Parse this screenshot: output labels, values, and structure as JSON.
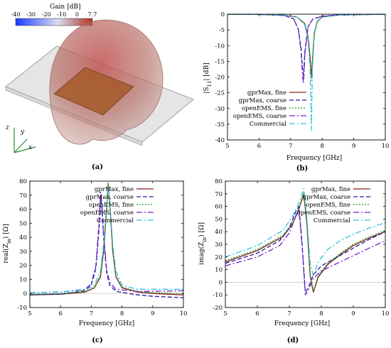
{
  "colors": {
    "gprmax_fine": "#8b1a1a",
    "gprmax_coarse": "#1c1c9c",
    "openems_fine": "#22a022",
    "openems_coarse": "#7a1fcc",
    "commercial": "#33c3e0"
  },
  "panel_labels": [
    "(a)",
    "(b)",
    "(c)",
    "(d)"
  ],
  "render3d": {
    "colorbar_title": "Gain [dB]",
    "colorbar_ticks": [
      "-40",
      "-30",
      "-20",
      "-10",
      "0",
      "7.7"
    ],
    "colorbar_colors": [
      "#1a3cff",
      "#d8dcf0",
      "#b03020"
    ],
    "axes": [
      "z",
      "y",
      "x"
    ]
  },
  "chart_data": [
    {
      "id": "b",
      "type": "line",
      "xlabel": "Frequency [GHz]",
      "ylabel": "|S",
      "ylabel_sub": "11",
      "ylabel_tail": "| [dB]",
      "xlim": [
        5,
        10
      ],
      "ylim": [
        -40,
        0
      ],
      "xticks": [
        5,
        6,
        7,
        8,
        9,
        10
      ],
      "yticks": [
        0,
        -5,
        -10,
        -15,
        -20,
        -25,
        -30,
        -35,
        -40
      ],
      "legend_position": "center-left",
      "series": [
        {
          "name": "gprMax, fine",
          "key": "gprmax_fine",
          "dash": "",
          "x": [
            5.0,
            6.0,
            6.8,
            7.2,
            7.45,
            7.55,
            7.62,
            7.66,
            7.69,
            7.75,
            7.85,
            8.0,
            8.5,
            9.0,
            10.0
          ],
          "y": [
            -0.05,
            -0.1,
            -0.3,
            -0.9,
            -3.0,
            -7.0,
            -14.0,
            -20.0,
            -15.0,
            -6.0,
            -2.2,
            -0.9,
            -0.3,
            -0.15,
            -0.05
          ]
        },
        {
          "name": "gprMax, coarse",
          "key": "gprmax_coarse",
          "dash": "6,3",
          "x": [
            5.0,
            6.0,
            6.8,
            7.1,
            7.25,
            7.33,
            7.38,
            7.41,
            7.45,
            7.55,
            7.7,
            8.0,
            8.5,
            9.0,
            10.0
          ],
          "y": [
            -0.05,
            -0.1,
            -0.4,
            -1.5,
            -5.0,
            -11.0,
            -18.0,
            -19.5,
            -12.0,
            -4.0,
            -1.6,
            -0.6,
            -0.25,
            -0.12,
            -0.05
          ]
        },
        {
          "name": "openEMS, fine",
          "key": "openems_fine",
          "dash": "2,2",
          "x": [
            5.0,
            6.0,
            6.8,
            7.2,
            7.45,
            7.55,
            7.62,
            7.66,
            7.69,
            7.75,
            7.85,
            8.0,
            8.5,
            9.0,
            10.0
          ],
          "y": [
            -0.05,
            -0.1,
            -0.3,
            -0.9,
            -3.0,
            -7.5,
            -15.0,
            -21.0,
            -15.5,
            -6.0,
            -2.2,
            -0.9,
            -0.3,
            -0.15,
            -0.05
          ]
        },
        {
          "name": "openEMS, coarse",
          "key": "openems_coarse",
          "dash": "8,3,2,3",
          "x": [
            5.0,
            6.0,
            6.8,
            7.1,
            7.25,
            7.33,
            7.38,
            7.41,
            7.45,
            7.55,
            7.7,
            8.0,
            8.5,
            9.0,
            10.0
          ],
          "y": [
            -0.05,
            -0.1,
            -0.4,
            -1.5,
            -5.0,
            -12.0,
            -20.0,
            -22.0,
            -13.0,
            -4.0,
            -1.6,
            -0.6,
            -0.25,
            -0.12,
            -0.05
          ]
        },
        {
          "name": "Commercial",
          "key": "commercial",
          "dash": "8,3,2,3",
          "x": [
            5.0,
            6.0,
            6.8,
            7.2,
            7.45,
            7.55,
            7.62,
            7.66,
            7.69,
            7.75,
            7.85,
            8.0,
            8.5,
            9.0,
            10.0
          ],
          "y": [
            -0.05,
            -0.1,
            -0.3,
            -0.9,
            -3.5,
            -8.0,
            -18.0,
            -37.0,
            -18.0,
            -6.5,
            -2.4,
            -0.9,
            -0.3,
            -0.15,
            -0.05
          ]
        }
      ]
    },
    {
      "id": "c",
      "type": "line",
      "xlabel": "Frequency [GHz]",
      "ylabel": "real(Z",
      "ylabel_sub": "in",
      "ylabel_tail": ") [Ω]",
      "xlim": [
        5,
        10
      ],
      "ylim": [
        -10,
        80
      ],
      "xticks": [
        5,
        6,
        7,
        8,
        9,
        10
      ],
      "yticks": [
        -10,
        0,
        10,
        20,
        30,
        40,
        50,
        60,
        70,
        80
      ],
      "legend_position": "top-right",
      "series": [
        {
          "name": "gprMax, fine",
          "key": "gprmax_fine",
          "dash": "",
          "x": [
            5.0,
            6.0,
            6.8,
            7.1,
            7.3,
            7.4,
            7.5,
            7.55,
            7.6,
            7.7,
            7.8,
            8.0,
            8.5,
            9.0,
            10.0
          ],
          "y": [
            -1.0,
            -0.5,
            1.0,
            4.0,
            12.0,
            30.0,
            60.0,
            78.0,
            65.0,
            30.0,
            12.0,
            4.0,
            1.0,
            0.0,
            -1.0
          ]
        },
        {
          "name": "gprMax, coarse",
          "key": "gprmax_coarse",
          "dash": "6,3",
          "x": [
            5.0,
            6.0,
            6.8,
            7.0,
            7.15,
            7.25,
            7.3,
            7.35,
            7.4,
            7.5,
            7.6,
            7.8,
            8.5,
            9.0,
            10.0
          ],
          "y": [
            -1.0,
            -0.5,
            2.0,
            6.0,
            18.0,
            45.0,
            68.0,
            60.0,
            40.0,
            15.0,
            6.0,
            1.5,
            -1.0,
            -2.0,
            -3.0
          ]
        },
        {
          "name": "openEMS, fine",
          "key": "openems_fine",
          "dash": "2,2",
          "x": [
            5.0,
            6.0,
            6.8,
            7.1,
            7.3,
            7.4,
            7.5,
            7.55,
            7.6,
            7.7,
            7.8,
            8.0,
            8.5,
            9.0,
            10.0
          ],
          "y": [
            -0.5,
            0.0,
            1.5,
            4.5,
            13.0,
            32.0,
            62.0,
            79.0,
            66.0,
            31.0,
            13.0,
            4.5,
            1.5,
            0.5,
            0.0
          ]
        },
        {
          "name": "openEMS, coarse",
          "key": "openems_coarse",
          "dash": "8,3,2,3",
          "x": [
            5.0,
            6.0,
            6.8,
            7.0,
            7.15,
            7.25,
            7.3,
            7.35,
            7.4,
            7.5,
            7.6,
            7.8,
            8.5,
            9.0,
            10.0
          ],
          "y": [
            0.5,
            1.0,
            3.0,
            7.0,
            20.0,
            50.0,
            72.0,
            63.0,
            42.0,
            17.0,
            8.0,
            3.0,
            1.5,
            1.5,
            2.0
          ]
        },
        {
          "name": "Commercial",
          "key": "commercial",
          "dash": "8,3,2,3",
          "x": [
            5.0,
            6.0,
            6.8,
            7.1,
            7.3,
            7.4,
            7.5,
            7.55,
            7.6,
            7.7,
            7.8,
            8.0,
            8.5,
            9.0,
            10.0
          ],
          "y": [
            0.5,
            1.0,
            2.5,
            6.0,
            16.0,
            35.0,
            62.0,
            76.0,
            66.0,
            35.0,
            16.0,
            6.0,
            3.0,
            3.0,
            3.0
          ]
        }
      ]
    },
    {
      "id": "d",
      "type": "line",
      "xlabel": "Frequency [GHz]",
      "ylabel": "imag(Z",
      "ylabel_sub": "in",
      "ylabel_tail": ") [Ω]",
      "xlim": [
        5,
        10
      ],
      "ylim": [
        -20,
        80
      ],
      "xticks": [
        5,
        6,
        7,
        8,
        9,
        10
      ],
      "yticks": [
        -20,
        -10,
        0,
        10,
        20,
        30,
        40,
        50,
        60,
        70,
        80
      ],
      "legend_position": "top-right",
      "series": [
        {
          "name": "gprMax, fine",
          "key": "gprmax_fine",
          "dash": "",
          "x": [
            5.0,
            6.0,
            6.8,
            7.1,
            7.3,
            7.45,
            7.55,
            7.65,
            7.75,
            7.9,
            8.2,
            8.6,
            9.0,
            9.5,
            10.0
          ],
          "y": [
            16.0,
            25.0,
            36.0,
            46.0,
            58.0,
            70.0,
            45.0,
            5.0,
            -8.0,
            4.0,
            14.0,
            22.0,
            29.0,
            35.0,
            40.0
          ]
        },
        {
          "name": "gprMax, coarse",
          "key": "gprmax_coarse",
          "dash": "6,3",
          "x": [
            5.0,
            6.0,
            6.7,
            7.0,
            7.2,
            7.3,
            7.4,
            7.5,
            7.6,
            7.75,
            8.0,
            8.5,
            9.0,
            9.5,
            10.0
          ],
          "y": [
            15.0,
            23.0,
            33.0,
            43.0,
            56.0,
            60.0,
            30.0,
            -8.0,
            -4.0,
            6.0,
            13.0,
            20.0,
            27.0,
            34.0,
            40.0
          ]
        },
        {
          "name": "openEMS, fine",
          "key": "openems_fine",
          "dash": "2,2",
          "x": [
            5.0,
            6.0,
            6.8,
            7.1,
            7.3,
            7.45,
            7.55,
            7.65,
            7.75,
            7.9,
            8.2,
            8.6,
            9.0,
            9.5,
            10.0
          ],
          "y": [
            17.0,
            26.0,
            37.0,
            47.0,
            59.0,
            71.0,
            46.0,
            6.0,
            -7.0,
            5.0,
            15.0,
            23.0,
            30.0,
            36.0,
            41.0
          ]
        },
        {
          "name": "openEMS, coarse",
          "key": "openems_coarse",
          "dash": "8,3,2,3",
          "x": [
            5.0,
            6.0,
            6.7,
            7.0,
            7.2,
            7.3,
            7.4,
            7.5,
            7.6,
            7.75,
            8.0,
            8.5,
            9.0,
            9.5,
            10.0
          ],
          "y": [
            13.0,
            20.0,
            29.0,
            39.0,
            52.0,
            57.0,
            28.0,
            -10.0,
            -6.0,
            3.0,
            9.0,
            15.0,
            21.0,
            27.0,
            33.0
          ]
        },
        {
          "name": "Commercial",
          "key": "commercial",
          "dash": "8,3,2,3",
          "x": [
            5.0,
            6.0,
            6.8,
            7.1,
            7.3,
            7.45,
            7.55,
            7.65,
            7.75,
            7.9,
            8.2,
            8.6,
            9.0,
            9.5,
            10.0
          ],
          "y": [
            20.0,
            29.0,
            41.0,
            52.0,
            63.0,
            74.0,
            50.0,
            15.0,
            5.0,
            16.0,
            26.0,
            33.0,
            38.0,
            43.0,
            47.0
          ]
        }
      ]
    }
  ]
}
